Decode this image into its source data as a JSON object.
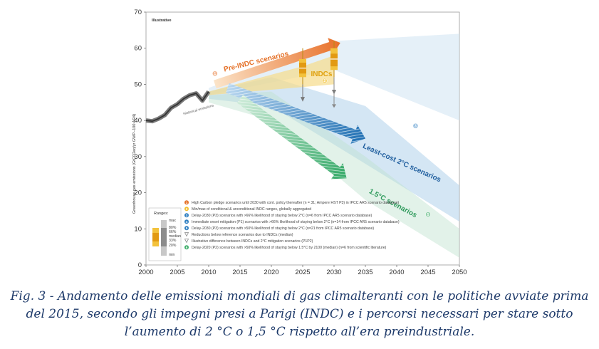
{
  "chart_data": {
    "type": "area",
    "panel_label": "Illustrative",
    "ylabel": "Greenhouse gas emissions (GtCO2eq/yr GWP−100 AR4)",
    "xlabel": "",
    "xlim": [
      2000,
      2050
    ],
    "ylim": [
      0,
      70
    ],
    "x_ticks": [
      "2000",
      "2005",
      "2010",
      "2015",
      "2020",
      "2025",
      "2030",
      "2035",
      "2040",
      "2045",
      "2050"
    ],
    "y_ticks": [
      "0",
      "10",
      "20",
      "30",
      "40",
      "50",
      "60",
      "70"
    ],
    "historical": {
      "x": [
        2000,
        2001,
        2002,
        2003,
        2004,
        2005,
        2006,
        2007,
        2008,
        2009,
        2010
      ],
      "y": [
        40,
        39.8,
        40.5,
        41.5,
        43.5,
        44.5,
        46,
        47,
        47.5,
        45.5,
        48
      ]
    },
    "series": [
      {
        "name": "Pre-INDC scenarios",
        "x": [
          2010,
          2020,
          2030
        ],
        "y": [
          48,
          55,
          61
        ]
      },
      {
        "name": "INDCs",
        "x": [
          2010,
          2025,
          2030
        ],
        "y": [
          48,
          54,
          55.5
        ]
      },
      {
        "name": "Least-cost 2°C scenarios",
        "x": [
          2010,
          2020,
          2035
        ],
        "y": [
          48,
          48,
          38
        ]
      },
      {
        "name": "1.5°C scenarios",
        "x": [
          2010,
          2020,
          2035
        ],
        "y": [
          48,
          45,
          25
        ]
      }
    ],
    "indc_bars": [
      {
        "x": 2025,
        "min": 50,
        "p20": 52,
        "p33": 53,
        "median": 54.5,
        "p66": 56,
        "p80": 57,
        "max": 60
      },
      {
        "x": 2030,
        "min": 52,
        "p20": 54,
        "p33": 55,
        "median": 57,
        "p66": 58.5,
        "p80": 60,
        "max": 62
      }
    ],
    "ranges_key": {
      "title": "Ranges:",
      "labels": [
        "max",
        "80%",
        "66%",
        "median",
        "33%",
        "20%",
        "min"
      ]
    },
    "legend": [
      {
        "num": "1",
        "color": "#e5722a",
        "text": "High Carbon pledge scenarios until 2030 with cont. policy thereafter (n = 31; Ampere HST P3) in IPCC AR5 scenario database)"
      },
      {
        "num": "2",
        "color": "#f4c02f",
        "text": "Min/max of conditional & unconditional INDC ranges, globally aggregated"
      },
      {
        "num": "3",
        "color": "#2f7fc1",
        "text": "Delay-2030 (P3) scenarios with >66% likelihood of staying below 2°C (n=6 from IPCC AR5 scenario database)"
      },
      {
        "num": "4",
        "color": "#2f7fc1",
        "text": "Immediate onset mitigation (P1) scenarios with >66% likelihood of staying below 2°C (n=14 from IPCC AR5 scenario database)"
      },
      {
        "num": "5",
        "color": "#2f7fc1",
        "text": "Delay-2030 (P3) scenarios with >50% likelihood of staying below 2°C (n=21 from IPCC AR5 scenario database)"
      },
      {
        "num": "",
        "color": "#888888",
        "text": "Reductions below reference scenarios due to INDCs (median)"
      },
      {
        "num": "",
        "color": "#888888",
        "text": "Illustrative difference between INDCs and 2°C mitigation scenarios (P1P2)"
      },
      {
        "num": "6",
        "color": "#3fae6a",
        "text": "Delay-2020 (P2) scenarios with >50% likelihood of staying below 1.5°C by 2100 (median) (n=6 from scientific literature)"
      }
    ],
    "annotations": [
      "Pre-INDC scenarios",
      "INDCs",
      "Least-cost 2°C scenarios",
      "1.5°C scenarios",
      "Historical emissions"
    ]
  },
  "caption": {
    "line1": "Fig. 3 -  Andamento delle emissioni mondiali di gas climalteranti con le politiche avviate prima",
    "line2": "del 2015, secondo gli impegni presi a Parigi (INDC) e i percorsi necessari per stare sotto",
    "line3": "l’aumento di 2 °C o 1,5 °C rispetto all’era preindustriale."
  }
}
